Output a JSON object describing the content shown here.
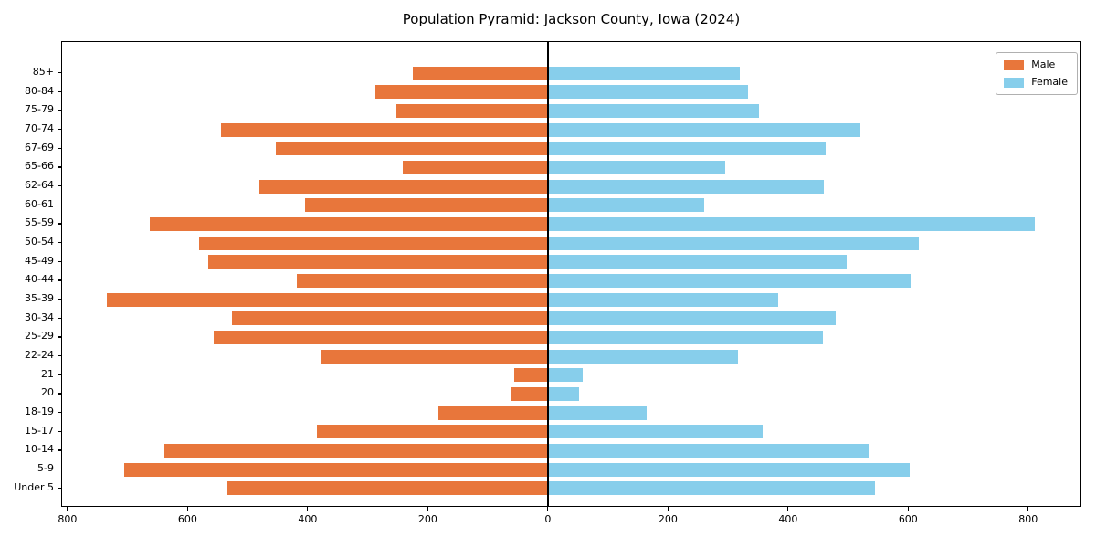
{
  "title": "Population Pyramid: Jackson County, Iowa (2024)",
  "legend": {
    "male_label": "Male",
    "female_label": "Female",
    "position": "upper right"
  },
  "colors": {
    "male": "#E8763B",
    "female": "#87CEEB",
    "axis": "#000000",
    "legend_border": "#B0B0B0",
    "background": "#FFFFFF"
  },
  "chart_data": {
    "type": "bar",
    "subtype": "population-pyramid",
    "orientation": "horizontal",
    "title": "Population Pyramid: Jackson County, Iowa (2024)",
    "category_order": "top-to-bottom",
    "categories": [
      "85+",
      "80-84",
      "75-79",
      "70-74",
      "67-69",
      "65-66",
      "62-64",
      "60-61",
      "55-59",
      "50-54",
      "45-49",
      "40-44",
      "35-39",
      "30-34",
      "25-29",
      "22-24",
      "21",
      "20",
      "18-19",
      "15-17",
      "10-14",
      "5-9",
      "Under 5"
    ],
    "series": [
      {
        "name": "Male",
        "side": "left",
        "color": "#E8763B",
        "values": [
          225,
          287,
          252,
          545,
          453,
          242,
          480,
          404,
          663,
          581,
          565,
          418,
          734,
          526,
          556,
          379,
          56,
          60,
          182,
          385,
          639,
          706,
          533
        ]
      },
      {
        "name": "Female",
        "side": "right",
        "color": "#87CEEB",
        "values": [
          320,
          333,
          352,
          520,
          462,
          295,
          460,
          260,
          811,
          618,
          498,
          604,
          383,
          480,
          458,
          317,
          58,
          52,
          165,
          357,
          534,
          602,
          545
        ]
      }
    ],
    "xlim": [
      -809,
      887
    ],
    "x_tick_values": [
      -800,
      -600,
      -400,
      -200,
      0,
      200,
      400,
      600,
      800
    ],
    "x_tick_labels": [
      "800",
      "600",
      "400",
      "200",
      "0",
      "200",
      "400",
      "600",
      "800"
    ],
    "grid": false,
    "center_axis_line": true,
    "legend_position": "upper right"
  }
}
